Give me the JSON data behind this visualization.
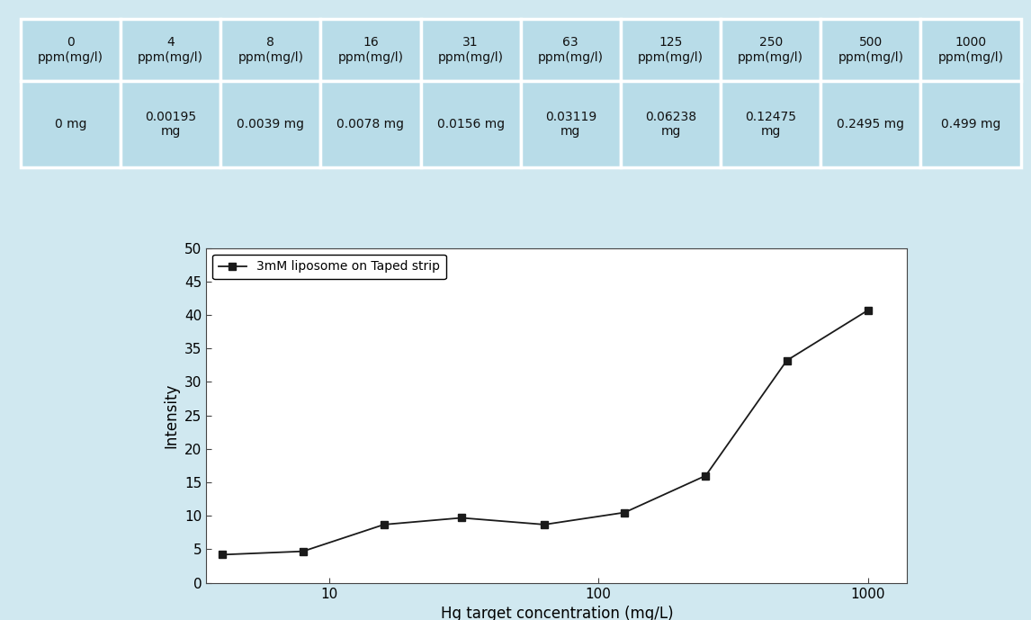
{
  "table_row1": [
    "0\nppm(mg/l)",
    "4\nppm(mg/l)",
    "8\nppm(mg/l)",
    "16\nppm(mg/l)",
    "31\nppm(mg/l)",
    "63\nppm(mg/l)",
    "125\nppm(mg/l)",
    "250\nppm(mg/l)",
    "500\nppm(mg/l)",
    "1000\nppm(mg/l)"
  ],
  "table_row2": [
    "0 mg",
    "0.00195\nmg",
    "0.0039 mg",
    "0.0078 mg",
    "0.0156 mg",
    "0.03119\nmg",
    "0.06238\nmg",
    "0.12475\nmg",
    "0.2495 mg",
    "0.499 mg"
  ],
  "x_values": [
    4,
    8,
    16,
    31,
    63,
    125,
    250,
    500,
    1000
  ],
  "y_values": [
    4.2,
    4.7,
    8.7,
    9.7,
    8.7,
    10.5,
    16.0,
    33.2,
    40.7
  ],
  "xlabel": "Hg target concentration (mg/L)",
  "ylabel": "Intensity",
  "legend_label": "3mM liposome on Taped strip",
  "ylim": [
    0,
    50
  ],
  "yticks": [
    0,
    5,
    10,
    15,
    20,
    25,
    30,
    35,
    40,
    45,
    50
  ],
  "xlim_low": 3.5,
  "xlim_high": 1400,
  "table_bg_color": "#b8dce8",
  "line_color": "#1a1a1a",
  "marker": "s",
  "marker_size": 6,
  "font_size_table": 10,
  "font_size_axis": 12,
  "font_size_ticks": 11,
  "bg_color": "#d0e8f0"
}
